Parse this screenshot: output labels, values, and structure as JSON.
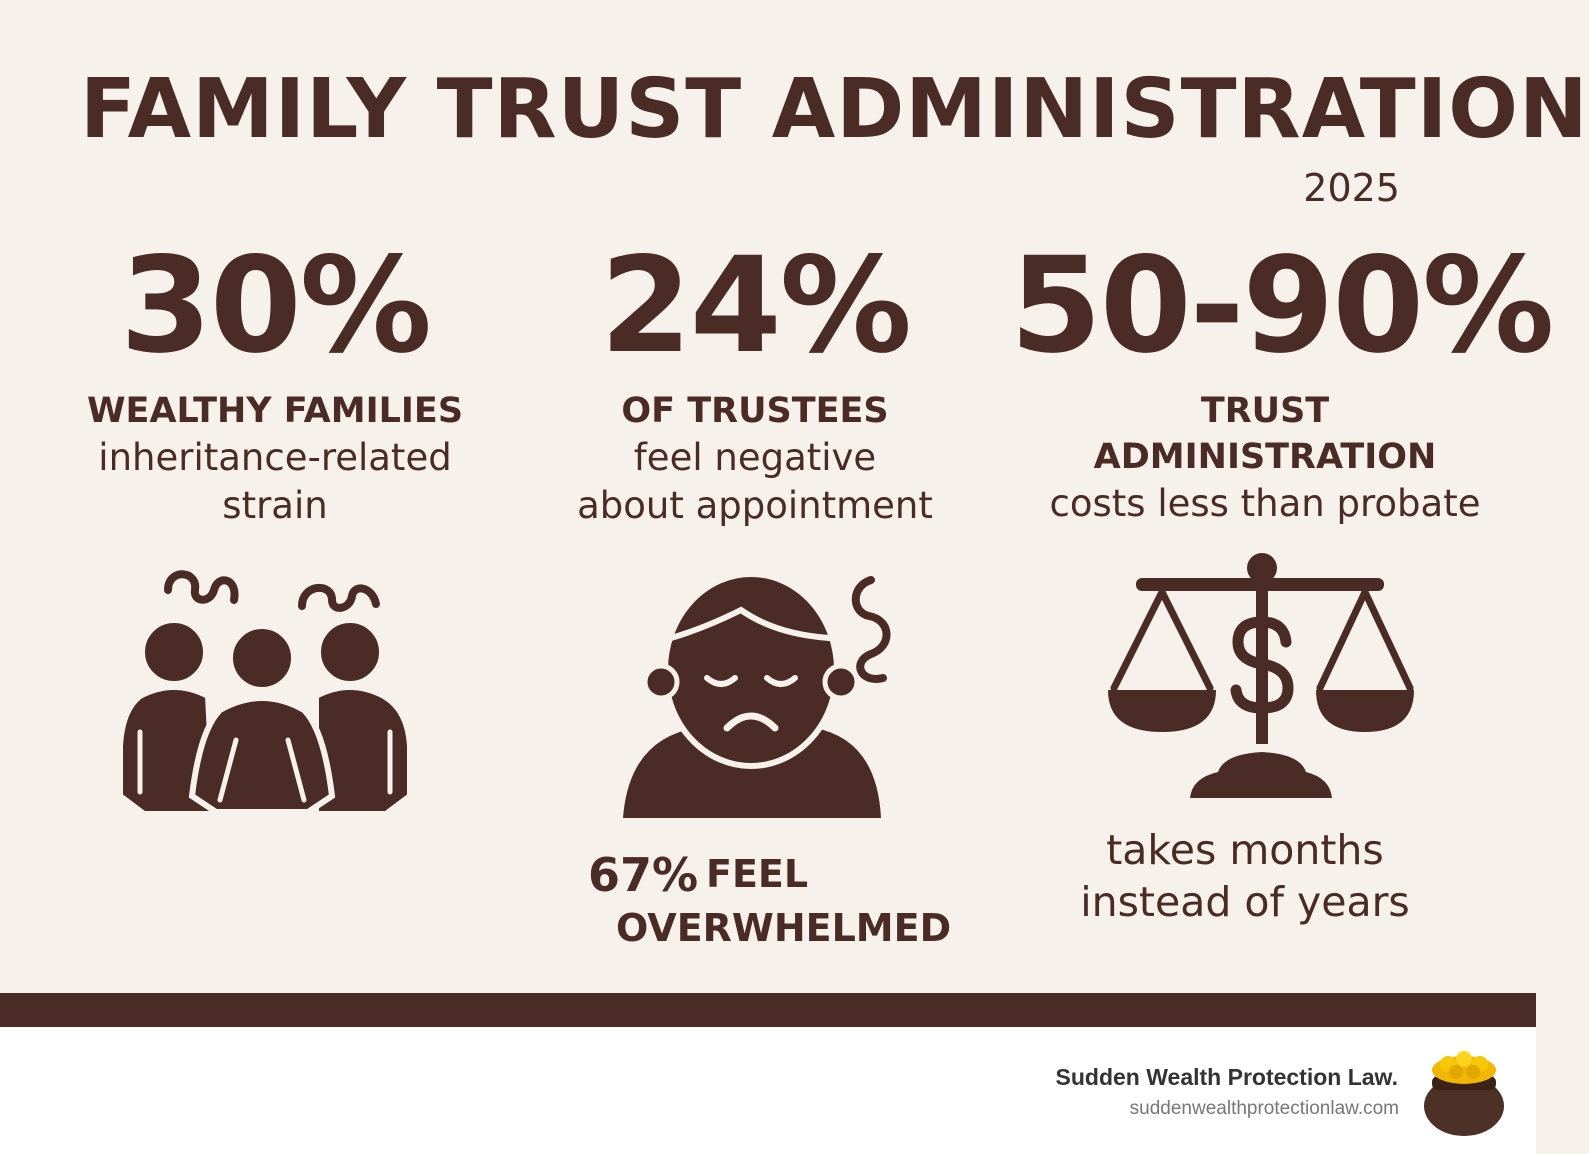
{
  "header": {
    "title": "FAMILY TRUST ADMINISTRATION",
    "year": "2025"
  },
  "stats": [
    {
      "value": "30%",
      "caption": "WEALTHY FAMILIES",
      "detail_line1": "inheritance-related",
      "detail_line2": "strain",
      "icon": "family-group-icon"
    },
    {
      "value": "24%",
      "caption": "OF TRUSTEES",
      "detail_line1": "feel negative",
      "detail_line2": "about appointment",
      "icon": "stressed-person-icon",
      "note_percent": "67%",
      "note_line1": "FEEL",
      "note_line2": "OVERWHELMED"
    },
    {
      "value": "50-90%",
      "caption_line1": "TRUST",
      "caption_line2": "ADMINISTRATION",
      "detail_line1": "costs less than probate",
      "icon": "scales-dollar-icon",
      "note_line1": "takes months",
      "note_line2": "instead of years"
    }
  ],
  "footer": {
    "brand_name": "Sudden Wealth Protection Law.",
    "url": "suddenwealthprotectionlaw.com",
    "logo_icon": "pot-of-gold-icon"
  },
  "colors": {
    "background": "#f6f1eb",
    "primary": "#4a2b25",
    "footer_background": "#ffffff",
    "gold": "#f2b705"
  }
}
